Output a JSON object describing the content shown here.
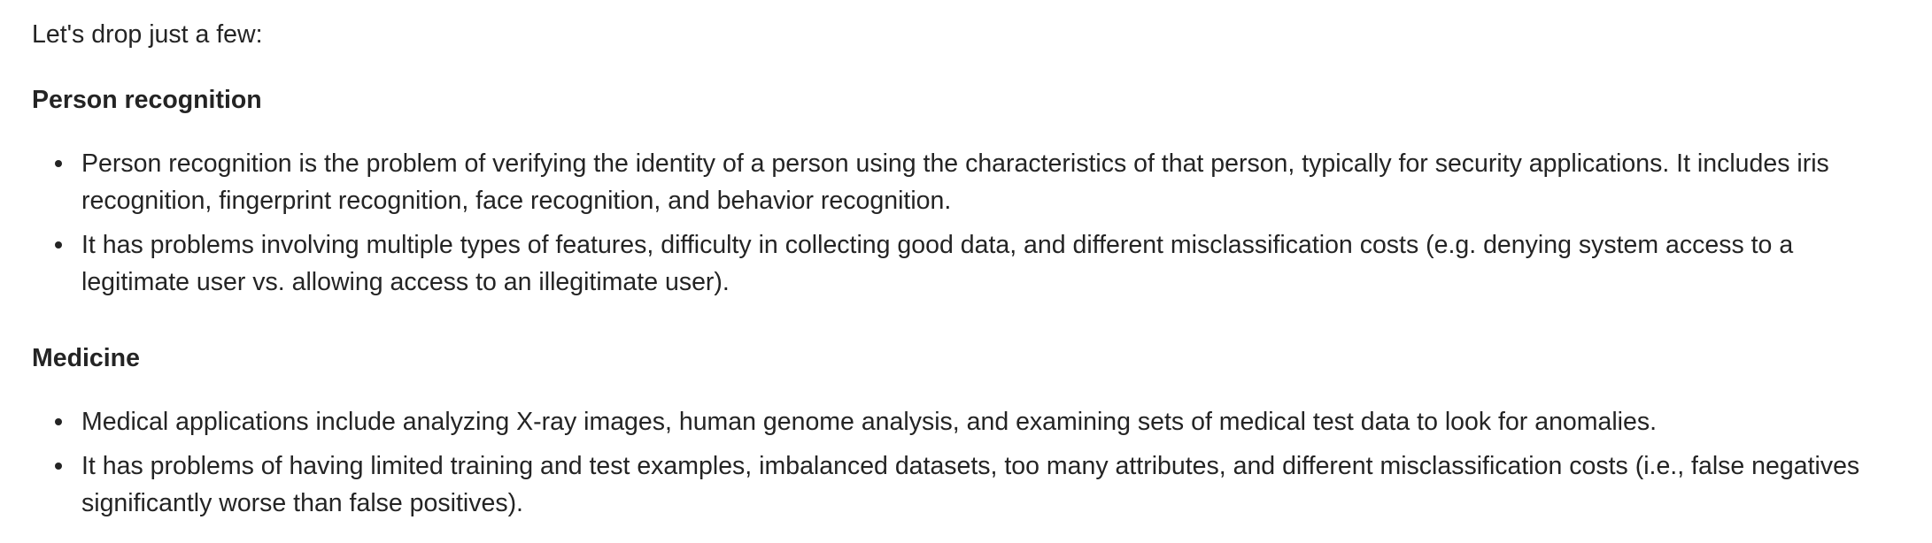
{
  "intro": "Let's drop just a few:",
  "sections": [
    {
      "heading": "Person recognition",
      "bullets": [
        "Person recognition is the problem of verifying the identity of a person using the characteristics of that person, typically for security applications. It includes iris recognition, fingerprint recognition, face recognition, and behavior recognition.",
        "It has problems involving multiple types of features, difficulty in collecting good data, and different misclassification costs (e.g. denying system access to a legitimate user vs. allowing access to an illegitimate user)."
      ]
    },
    {
      "heading": "Medicine",
      "bullets": [
        "Medical applications include analyzing X-ray images, human genome analysis, and examining sets of medical test data to look for anomalies.",
        "It has problems of having limited training and test examples, imbalanced datasets, too many attributes, and different misclassification costs (i.e., false negatives significantly worse than false positives)."
      ]
    }
  ]
}
